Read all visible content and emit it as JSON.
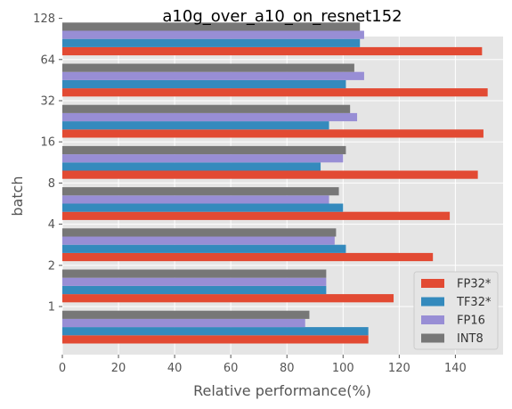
{
  "chart_data": {
    "type": "bar",
    "orientation": "horizontal",
    "title": "a10g_over_a10_on_resnet152",
    "xlabel": "Relative performance(%)",
    "ylabel": "batch",
    "xlim": [
      0,
      157
    ],
    "xticks": [
      0,
      20,
      40,
      60,
      80,
      100,
      120,
      140
    ],
    "categories": [
      "1",
      "2",
      "4",
      "8",
      "16",
      "32",
      "64",
      "128"
    ],
    "series": [
      {
        "name": "FP32*",
        "color": "#E24A33",
        "values": [
          109,
          118,
          132,
          138,
          148,
          150,
          151.5,
          149.5
        ]
      },
      {
        "name": "TF32*",
        "color": "#348ABD",
        "values": [
          109,
          94,
          101,
          100,
          92,
          95,
          101,
          106
        ]
      },
      {
        "name": "FP16",
        "color": "#988ED5",
        "values": [
          86.5,
          94,
          97,
          95,
          100,
          105,
          107.5,
          107.5
        ]
      },
      {
        "name": "INT8",
        "color": "#777777",
        "values": [
          88,
          94,
          97.5,
          98.5,
          101,
          102.5,
          104,
          106
        ]
      }
    ],
    "grid": true,
    "legend_position": "lower-right"
  }
}
